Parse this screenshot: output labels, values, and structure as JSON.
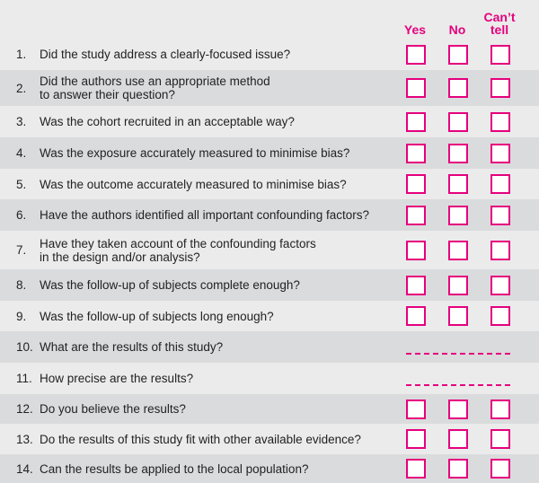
{
  "header": {
    "yes": "Yes",
    "no": "No",
    "cant_tell_1": "Can’t",
    "cant_tell_2": "tell"
  },
  "accent_color": "#e5007e",
  "questions": [
    {
      "num": "1.",
      "text": "Did the study address a clearly-focused issue?",
      "type": "checkbox"
    },
    {
      "num": "2.",
      "text": "Did the authors use an appropriate method",
      "text2": "to answer their question?",
      "type": "checkbox"
    },
    {
      "num": "3.",
      "text": "Was the cohort recruited in an acceptable way?",
      "type": "checkbox"
    },
    {
      "num": "4.",
      "text": "Was the exposure accurately measured to minimise bias?",
      "type": "checkbox"
    },
    {
      "num": "5.",
      "text": "Was the outcome accurately measured to minimise bias?",
      "type": "checkbox"
    },
    {
      "num": "6.",
      "text": "Have the authors identified all important confounding factors?",
      "type": "checkbox"
    },
    {
      "num": "7.",
      "text": "Have they taken account of the confounding factors",
      "text2": "in the design and/or analysis?",
      "type": "checkbox"
    },
    {
      "num": "8.",
      "text": "Was the follow-up of subjects complete enough?",
      "type": "checkbox"
    },
    {
      "num": "9.",
      "text": "Was the follow-up of subjects long enough?",
      "type": "checkbox"
    },
    {
      "num": "10.",
      "text": "What are the results of this study?",
      "type": "line"
    },
    {
      "num": "11.",
      "text": "How precise are the results?",
      "type": "line"
    },
    {
      "num": "12.",
      "text": "Do you believe the results?",
      "type": "checkbox"
    },
    {
      "num": "13.",
      "text": "Do the results of this study fit with other available evidence?",
      "type": "checkbox"
    },
    {
      "num": "14.",
      "text": "Can the results be applied to the local population?",
      "type": "checkbox"
    }
  ]
}
